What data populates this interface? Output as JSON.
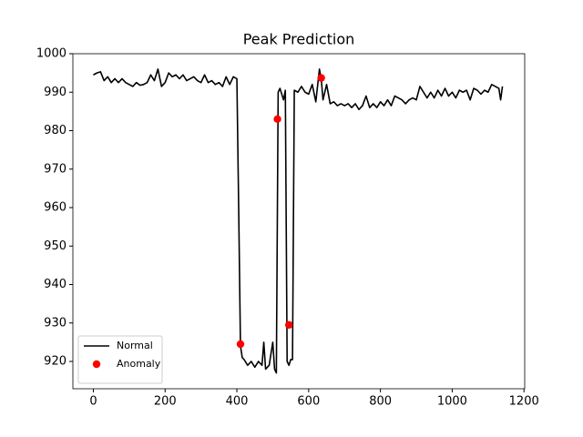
{
  "chart_data": {
    "type": "line",
    "title": "Peak Prediction",
    "xlim": [
      -57,
      1202
    ],
    "xticks": [
      0,
      200,
      400,
      600,
      800,
      1000,
      1200
    ],
    "ylim": [
      912.9,
      1000.0
    ],
    "yticks": [
      920,
      930,
      940,
      950,
      960,
      970,
      980,
      990,
      1000
    ],
    "legend": "lower left",
    "series": [
      {
        "name": "Normal",
        "type": "line",
        "color": "#000000",
        "x": [
          0,
          10,
          20,
          30,
          40,
          50,
          60,
          70,
          80,
          90,
          100,
          110,
          120,
          130,
          140,
          150,
          160,
          170,
          180,
          190,
          200,
          210,
          220,
          230,
          240,
          250,
          260,
          270,
          280,
          290,
          300,
          310,
          320,
          330,
          340,
          350,
          360,
          370,
          380,
          390,
          400,
          405,
          410,
          415,
          420,
          430,
          440,
          450,
          460,
          470,
          475,
          480,
          490,
          500,
          505,
          510,
          515,
          520,
          530,
          535,
          540,
          545,
          550,
          555,
          560,
          570,
          580,
          590,
          600,
          610,
          620,
          630,
          635,
          640,
          650,
          660,
          670,
          680,
          690,
          700,
          710,
          720,
          730,
          740,
          750,
          760,
          770,
          780,
          790,
          800,
          810,
          820,
          830,
          840,
          850,
          860,
          870,
          880,
          890,
          900,
          910,
          920,
          930,
          940,
          950,
          960,
          970,
          980,
          990,
          1000,
          1010,
          1020,
          1030,
          1040,
          1050,
          1060,
          1070,
          1080,
          1090,
          1100,
          1110,
          1120,
          1130,
          1135,
          1140
        ],
        "values": [
          994.5,
          995,
          995.3,
          993,
          994,
          992.5,
          993.5,
          992.5,
          993.5,
          992.5,
          992,
          991.5,
          992.5,
          991.8,
          992,
          992.5,
          994.5,
          993,
          996,
          991.5,
          992.5,
          995,
          994,
          994.5,
          993.5,
          994.5,
          993,
          993.5,
          994,
          993,
          992.5,
          994.5,
          992.5,
          993,
          992,
          992.5,
          991.5,
          994,
          992,
          994,
          993.5,
          960,
          924,
          921,
          920.5,
          919,
          920,
          918.5,
          920,
          919,
          925,
          918,
          919,
          925,
          918,
          917,
          990,
          991,
          988,
          990.5,
          920,
          919,
          920.5,
          920.5,
          990.5,
          990,
          991.5,
          990,
          989.5,
          992,
          987.5,
          996,
          993.5,
          988,
          992,
          987,
          987.5,
          986.5,
          987,
          986.5,
          987,
          986,
          987,
          985.5,
          986.5,
          989,
          986,
          987,
          986,
          987.5,
          986.5,
          988,
          986.5,
          989,
          988.5,
          988,
          987,
          988,
          988.5,
          988,
          991.5,
          990,
          988.5,
          990,
          988.5,
          990.5,
          989,
          991,
          989,
          990,
          988.5,
          990.5,
          990,
          990.5,
          988,
          991,
          990.5,
          989.5,
          990.5,
          990,
          992,
          991.5,
          991,
          988,
          991.5
        ]
      },
      {
        "name": "Anomaly",
        "type": "scatter",
        "color": "#ff0000",
        "x": [
          410,
          513,
          545,
          635
        ],
        "values": [
          924.5,
          983,
          929.5,
          993.7
        ]
      }
    ]
  }
}
